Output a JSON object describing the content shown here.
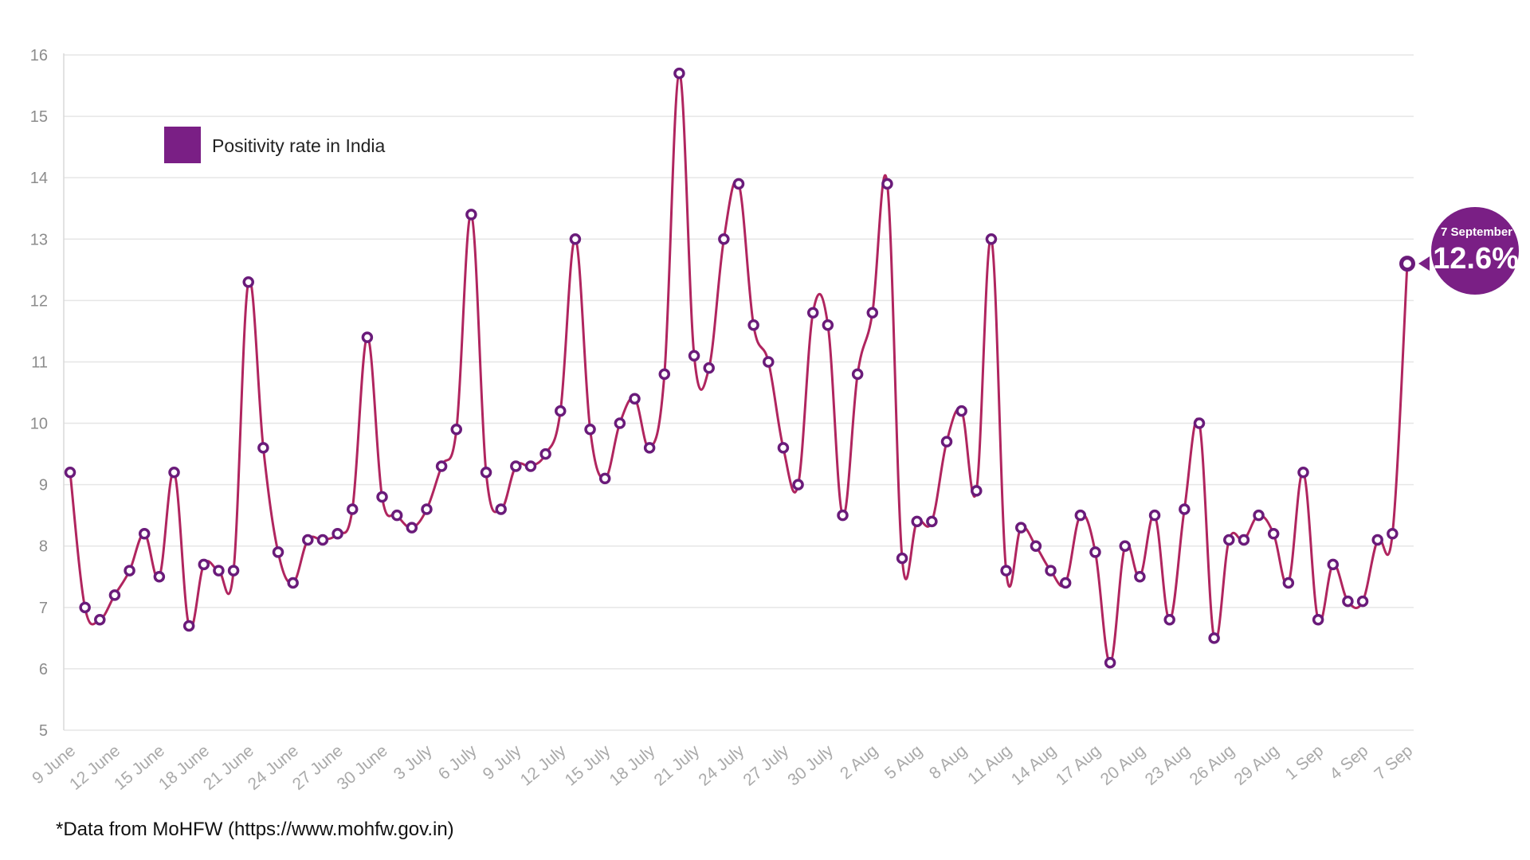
{
  "chart_data": {
    "type": "line",
    "title": "",
    "xlabel": "",
    "ylabel": "",
    "ylim": [
      5,
      16
    ],
    "yticks": [
      5,
      6,
      7,
      8,
      9,
      10,
      11,
      12,
      13,
      14,
      15,
      16
    ],
    "grid": true,
    "legend": {
      "placement": "top-left",
      "label": "Positivity rate in India"
    },
    "x_tick_labels": [
      "9 June",
      "12 June",
      "15 June",
      "18 June",
      "21 June",
      "24 June",
      "27 June",
      "30 June",
      "3 July",
      "6 July",
      "9 July",
      "12 July",
      "15 July",
      "18 July",
      "21 July",
      "24 July",
      "27 July",
      "30 July",
      "2 Aug",
      "5 Aug",
      "8 Aug",
      "11 Aug",
      "14 Aug",
      "17 Aug",
      "20 Aug",
      "23 Aug",
      "26 Aug",
      "29 Aug",
      "1 Sep",
      "4 Sep",
      "7 Sep"
    ],
    "series": [
      {
        "name": "Positivity rate in India",
        "start_date": "9 June",
        "end_date": "7 Sep",
        "values": [
          9.2,
          7.0,
          6.8,
          7.2,
          7.6,
          8.2,
          7.5,
          9.2,
          6.7,
          7.7,
          7.6,
          7.6,
          12.3,
          9.6,
          7.9,
          7.4,
          8.1,
          8.1,
          8.2,
          8.6,
          11.4,
          8.8,
          8.5,
          8.3,
          8.6,
          9.3,
          9.9,
          13.4,
          9.2,
          8.6,
          9.3,
          9.3,
          9.5,
          10.2,
          13.0,
          9.9,
          9.1,
          10.0,
          10.4,
          9.6,
          10.8,
          15.7,
          11.1,
          10.9,
          13.0,
          13.9,
          11.6,
          11.0,
          9.6,
          9.0,
          11.8,
          11.6,
          8.5,
          10.8,
          11.8,
          13.9,
          7.8,
          8.4,
          8.4,
          9.7,
          10.2,
          8.9,
          13.0,
          7.6,
          8.3,
          8.0,
          7.6,
          7.4,
          8.5,
          7.9,
          6.1,
          8.0,
          7.5,
          8.5,
          6.8,
          8.6,
          10.0,
          6.5,
          8.1,
          8.1,
          8.5,
          8.2,
          7.4,
          9.2,
          6.8,
          7.7,
          7.1,
          7.1,
          8.1,
          8.2,
          12.6
        ]
      }
    ],
    "callout": {
      "date_label": "7 September",
      "value_label": "12.6%"
    }
  },
  "colors": {
    "line": "#b0255f",
    "marker": "#6a1b7a",
    "legend_swatch": "#7a1f85",
    "callout": "#7a1f85",
    "grid": "#e6e6e6",
    "axis": "#d9d9d9"
  },
  "footer": {
    "source_note": "*Data from MoHFW (https://www.mohfw.gov.in)"
  }
}
